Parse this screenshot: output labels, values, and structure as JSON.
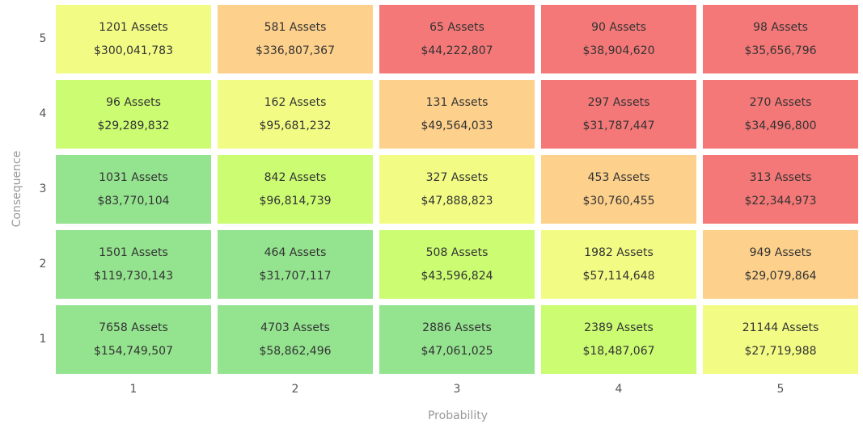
{
  "chart_data": {
    "type": "heatmap",
    "xlabel": "Probability",
    "ylabel": "Consequence",
    "x_categories": [
      "1",
      "2",
      "3",
      "4",
      "5"
    ],
    "y_categories": [
      "5",
      "4",
      "3",
      "2",
      "1"
    ],
    "count_suffix": "Assets",
    "colors": {
      "green": "#94e38f",
      "lime": "#cbfc72",
      "yellow": "#f2fc84",
      "orange": "#fdd08c",
      "red": "#f57878"
    },
    "rows": [
      [
        {
          "count": "1201",
          "value": "$300,041,783",
          "level": "yellow"
        },
        {
          "count": "581",
          "value": "$336,807,367",
          "level": "orange"
        },
        {
          "count": "65",
          "value": "$44,222,807",
          "level": "red"
        },
        {
          "count": "90",
          "value": "$38,904,620",
          "level": "red"
        },
        {
          "count": "98",
          "value": "$35,656,796",
          "level": "red"
        }
      ],
      [
        {
          "count": "96",
          "value": "$29,289,832",
          "level": "lime"
        },
        {
          "count": "162",
          "value": "$95,681,232",
          "level": "yellow"
        },
        {
          "count": "131",
          "value": "$49,564,033",
          "level": "orange"
        },
        {
          "count": "297",
          "value": "$31,787,447",
          "level": "red"
        },
        {
          "count": "270",
          "value": "$34,496,800",
          "level": "red"
        }
      ],
      [
        {
          "count": "1031",
          "value": "$83,770,104",
          "level": "green"
        },
        {
          "count": "842",
          "value": "$96,814,739",
          "level": "lime"
        },
        {
          "count": "327",
          "value": "$47,888,823",
          "level": "yellow"
        },
        {
          "count": "453",
          "value": "$30,760,455",
          "level": "orange"
        },
        {
          "count": "313",
          "value": "$22,344,973",
          "level": "red"
        }
      ],
      [
        {
          "count": "1501",
          "value": "$119,730,143",
          "level": "green"
        },
        {
          "count": "464",
          "value": "$31,707,117",
          "level": "green"
        },
        {
          "count": "508",
          "value": "$43,596,824",
          "level": "lime"
        },
        {
          "count": "1982",
          "value": "$57,114,648",
          "level": "yellow"
        },
        {
          "count": "949",
          "value": "$29,079,864",
          "level": "orange"
        }
      ],
      [
        {
          "count": "7658",
          "value": "$154,749,507",
          "level": "green"
        },
        {
          "count": "4703",
          "value": "$58,862,496",
          "level": "green"
        },
        {
          "count": "2886",
          "value": "$47,061,025",
          "level": "green"
        },
        {
          "count": "2389",
          "value": "$18,487,067",
          "level": "lime"
        },
        {
          "count": "21144",
          "value": "$27,719,988",
          "level": "yellow"
        }
      ]
    ]
  }
}
